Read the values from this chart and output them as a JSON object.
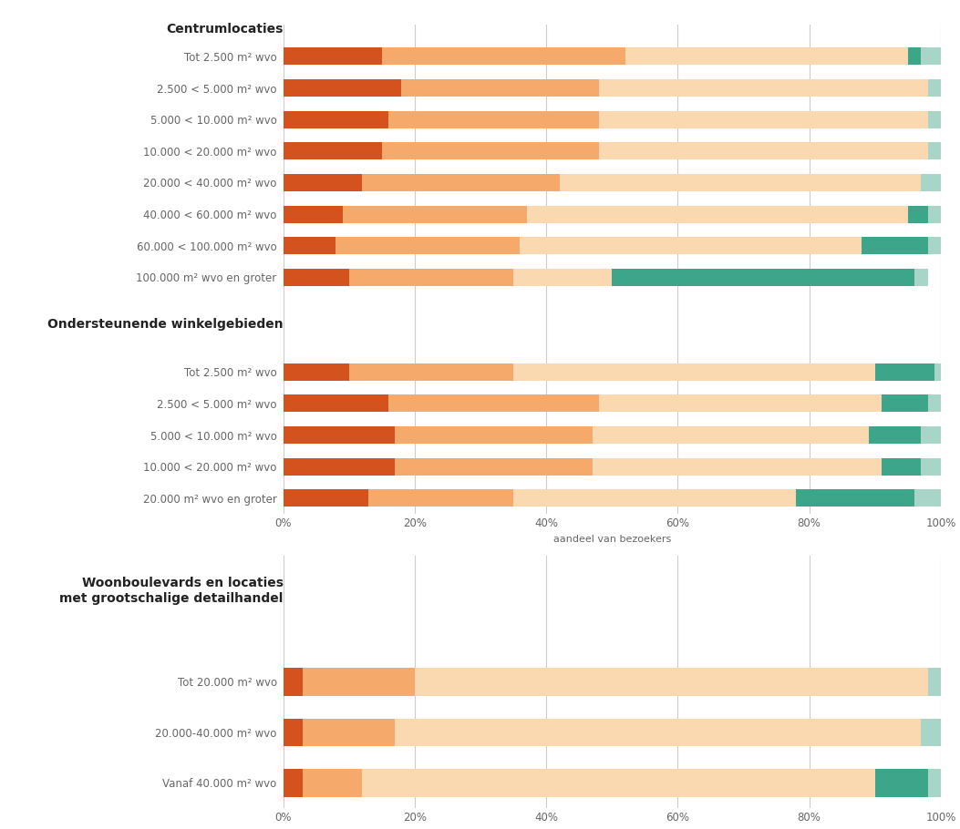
{
  "section1_title": "Centrumlocaties",
  "section2_title": "Ondersteunende winkelgebieden",
  "section3_title": "Woonboulevards en locaties\nmet grootschalige detailhandel",
  "xlabel": "aandeel van bezoekers",
  "colors": {
    "dark_orange": "#D4521E",
    "light_orange": "#F5A96B",
    "very_light_orange": "#FAD8B0",
    "teal": "#3DA68A",
    "light_teal": "#A8D5C8"
  },
  "section1_labels": [
    "Tot 2.500 m² wvo",
    "2.500 < 5.000 m² wvo",
    "5.000 < 10.000 m² wvo",
    "10.000 < 20.000 m² wvo",
    "20.000 < 40.000 m² wvo",
    "40.000 < 60.000 m² wvo",
    "60.000 < 100.000 m² wvo",
    "100.000 m² wvo en groter"
  ],
  "section1_data": [
    [
      15,
      37,
      43,
      2,
      3
    ],
    [
      18,
      30,
      50,
      0,
      2
    ],
    [
      16,
      32,
      50,
      0,
      2
    ],
    [
      15,
      33,
      50,
      0,
      2
    ],
    [
      12,
      30,
      55,
      0,
      3
    ],
    [
      9,
      28,
      58,
      3,
      2
    ],
    [
      8,
      28,
      52,
      10,
      2
    ],
    [
      10,
      25,
      15,
      46,
      2
    ]
  ],
  "section2_labels": [
    "Tot 2.500 m² wvo",
    "2.500 < 5.000 m² wvo",
    "5.000 < 10.000 m² wvo",
    "10.000 < 20.000 m² wvo",
    "20.000 m² wvo en groter"
  ],
  "section2_data": [
    [
      10,
      25,
      55,
      9,
      1
    ],
    [
      16,
      32,
      43,
      7,
      2
    ],
    [
      17,
      30,
      42,
      8,
      3
    ],
    [
      17,
      30,
      44,
      6,
      3
    ],
    [
      13,
      22,
      43,
      18,
      4
    ]
  ],
  "section3_labels": [
    "Tot 20.000 m² wvo",
    "20.000-40.000 m² wvo",
    "Vanaf 40.000 m² wvo"
  ],
  "section3_data": [
    [
      3,
      17,
      78,
      0,
      2
    ],
    [
      3,
      14,
      80,
      0,
      3
    ],
    [
      3,
      9,
      78,
      8,
      2
    ]
  ],
  "background_color": "#FFFFFF",
  "grid_color": "#CCCCCC",
  "label_color": "#666666",
  "title_color": "#222222"
}
